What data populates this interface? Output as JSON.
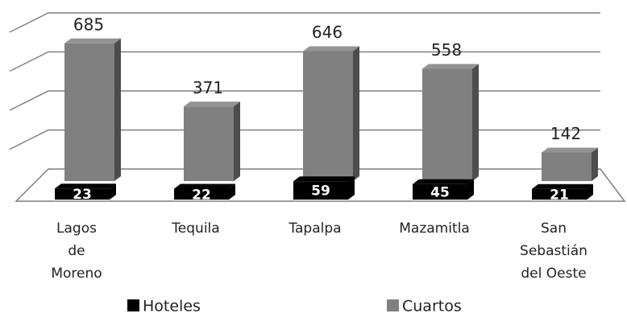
{
  "chart_data": {
    "type": "bar3d",
    "categories": [
      "Lagos de Moreno",
      "Tequila",
      "Tapalpa",
      "Mazamitla",
      "San Sebastián del Oeste"
    ],
    "series": [
      {
        "name": "Hoteles",
        "color": "#000000",
        "values": [
          23,
          22,
          59,
          45,
          21
        ]
      },
      {
        "name": "Cuartos",
        "color": "#808080",
        "values": [
          685,
          371,
          646,
          558,
          142
        ]
      }
    ],
    "ylim": [
      0,
      800
    ],
    "yticks": [
      0,
      200,
      400,
      600,
      800
    ],
    "grid": true,
    "legend": "bottom"
  }
}
